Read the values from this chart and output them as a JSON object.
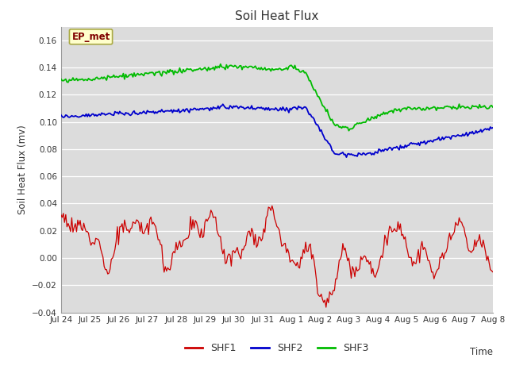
{
  "title": "Soil Heat Flux",
  "ylabel": "Soil Heat Flux (mv)",
  "xlabel": "Time",
  "legend_label": "EP_met",
  "ylim": [
    -0.04,
    0.17
  ],
  "yticks": [
    -0.04,
    -0.02,
    0.0,
    0.02,
    0.04,
    0.06,
    0.08,
    0.1,
    0.12,
    0.14,
    0.16
  ],
  "x_tick_labels": [
    "Jul 24",
    "Jul 25",
    "Jul 26",
    "Jul 27",
    "Jul 28",
    "Jul 29",
    "Jul 30",
    "Jul 31",
    "Aug 1",
    "Aug 2",
    "Aug 3",
    "Aug 4",
    "Aug 5",
    "Aug 6",
    "Aug 7",
    "Aug 8"
  ],
  "colors": {
    "SHF1": "#cc0000",
    "SHF2": "#0000cc",
    "SHF3": "#00bb00",
    "background": "#dcdcdc",
    "legend_box_bg": "#ffffcc",
    "legend_box_edge": "#aaaa44"
  },
  "series_names": [
    "SHF1",
    "SHF2",
    "SHF3"
  ],
  "n_points": 361
}
